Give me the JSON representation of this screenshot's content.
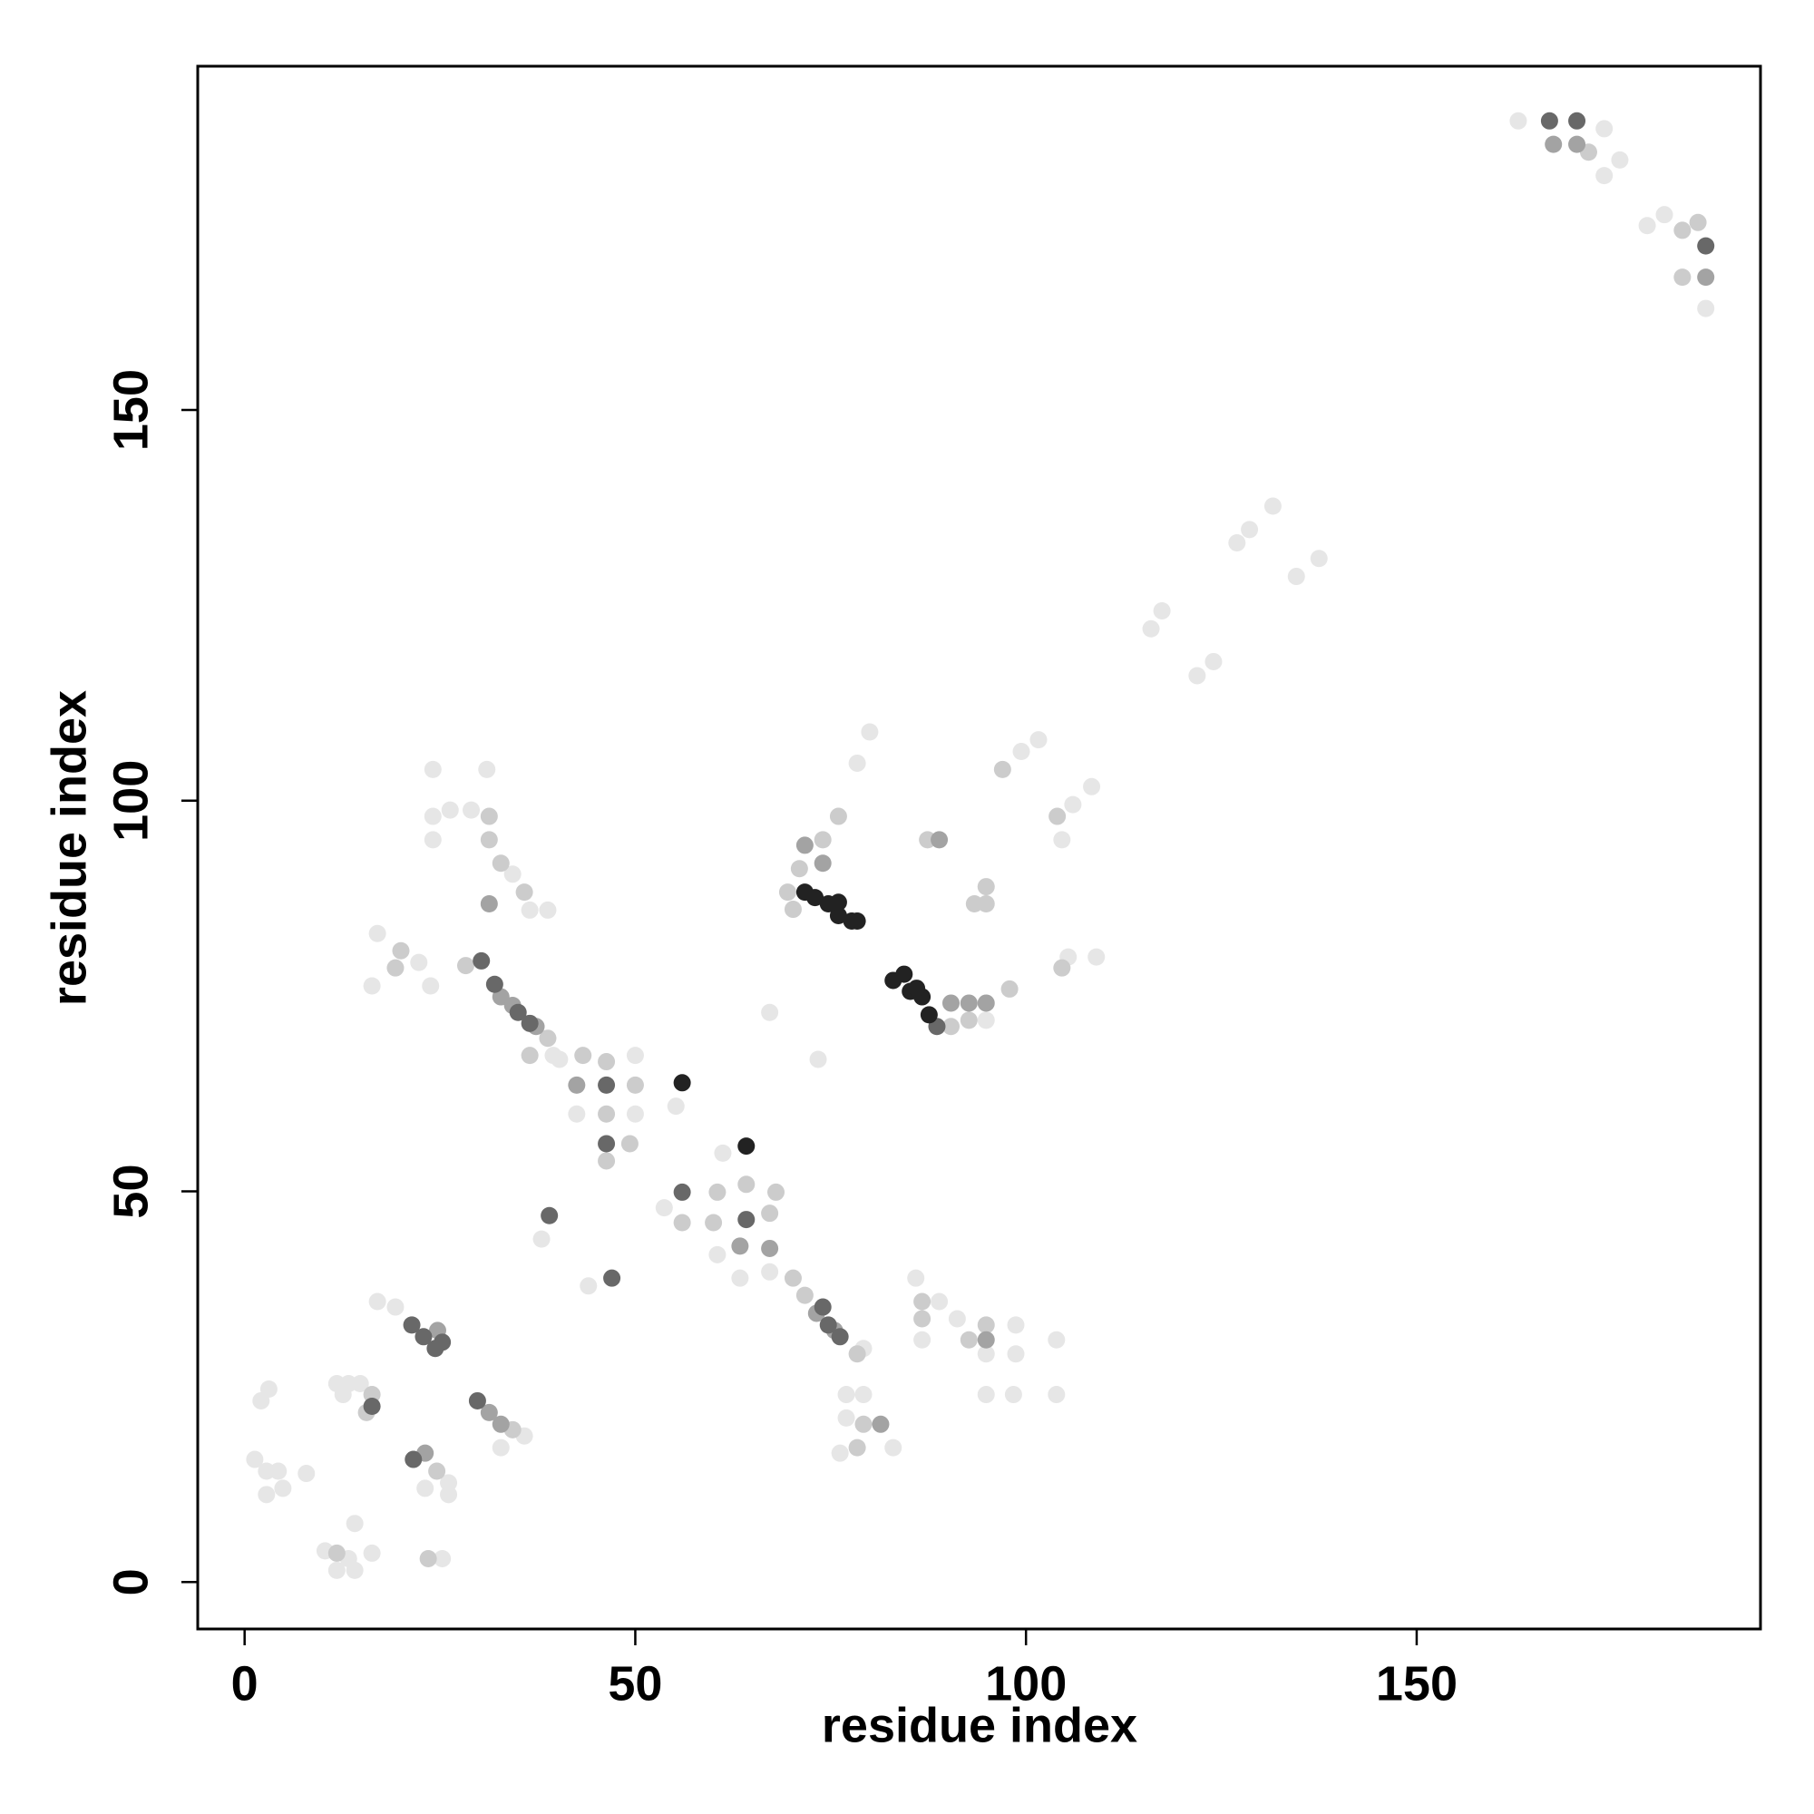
{
  "chart_data": {
    "type": "scatter",
    "x_label": "residue index",
    "y_label": "residue index",
    "xlim": [
      -6,
      194
    ],
    "ylim": [
      -6,
      194
    ],
    "xticks": [
      0,
      50,
      100,
      150
    ],
    "yticks": [
      0,
      50,
      100,
      150
    ],
    "grid": false,
    "series": [
      {
        "color": "#e6e6e6",
        "x": [
          163,
          174,
          176,
          174,
          179.5,
          181.7,
          187,
          131.6,
          128.6,
          127,
          134.6,
          137.5,
          117.4,
          116,
          124,
          121.9,
          101.6,
          99.4,
          80,
          78.4,
          108.4,
          106,
          104.6,
          67.2,
          105.4,
          109,
          94.9,
          24.1,
          24.1,
          26.3,
          24.1,
          31,
          29,
          34.3,
          36.5,
          38.8,
          17,
          16.3,
          23.8,
          22.3,
          39.5,
          40.3,
          42.5,
          50,
          50,
          55.2,
          61.2,
          38,
          44,
          53.7,
          63.4,
          67.2,
          60.5,
          79.2,
          77,
          79.2,
          76.2,
          83,
          77,
          85.9,
          88.9,
          91.2,
          98.7,
          98.7,
          94.9,
          98.4,
          103.9,
          103.9,
          94.9,
          86.7,
          17,
          19.3,
          11.8,
          13.3,
          14.8,
          12.6,
          35.8,
          32.8,
          26.1,
          26.1,
          23.1,
          1.3,
          2.8,
          4.3,
          4.9,
          7.9,
          2.8,
          3.1,
          2.1,
          10.3,
          13.3,
          14.1,
          16.3,
          14.1,
          11.8,
          25.3,
          73.4
        ],
        "values": [
          187,
          186,
          182,
          180,
          173.6,
          175,
          163,
          137.7,
          134.7,
          133,
          128.7,
          131,
          124.3,
          122,
          117.8,
          116,
          107.8,
          106.3,
          108.8,
          104.8,
          101.8,
          99.5,
          95,
          72.9,
          80,
          80,
          71.9,
          104,
          98,
          98.8,
          95,
          104,
          98.8,
          90.6,
          86,
          86,
          83,
          76.3,
          76.3,
          79.3,
          67.4,
          66.9,
          59.9,
          67.4,
          59.9,
          60.9,
          54.9,
          43.9,
          37.9,
          47.9,
          38.9,
          39.7,
          41.9,
          29.9,
          24,
          24,
          16.5,
          17.2,
          21,
          38.9,
          35.9,
          33.7,
          32.9,
          29.2,
          24,
          24,
          31,
          24,
          29.2,
          31,
          35.9,
          35.2,
          25.4,
          25.4,
          25.4,
          24,
          18.7,
          17.2,
          12.7,
          11.2,
          12,
          15.7,
          14.2,
          14.2,
          12,
          13.9,
          11.2,
          24.7,
          23.2,
          4,
          3,
          7.5,
          3.7,
          1.5,
          1.5,
          3,
          66.9
        ]
      },
      {
        "color": "#cccccc",
        "x": [
          172,
          184,
          186,
          184,
          97,
          76,
          87.4,
          104,
          94.9,
          94.9,
          93.4,
          97.9,
          104.6,
          90.4,
          92.7,
          31.3,
          31.3,
          32.8,
          35.8,
          20,
          19.3,
          28.3,
          38.8,
          36.5,
          43.3,
          46.3,
          50,
          46.3,
          49.3,
          46.3,
          60.5,
          64.2,
          60,
          56,
          68,
          67.2,
          70.2,
          71.7,
          78.4,
          79.2,
          78.4,
          86.7,
          86.7,
          94.9,
          92.7,
          16.3,
          15.6,
          34.3,
          24.6,
          23.5,
          11.8,
          74,
          71,
          69.5,
          70.2
        ],
        "values": [
          183,
          173,
          174,
          167,
          104,
          98,
          95,
          98,
          89,
          86.8,
          86.8,
          75.9,
          78.6,
          71.1,
          71.9,
          98,
          95,
          92,
          88.3,
          80.8,
          78.6,
          78.9,
          69.6,
          67.4,
          67.4,
          66.6,
          63.6,
          59.9,
          56.1,
          53.9,
          49.9,
          50.9,
          46,
          46,
          49.9,
          47.2,
          38.9,
          36.7,
          29.2,
          20.2,
          17.2,
          35.9,
          33.7,
          32.9,
          31,
          24,
          21.7,
          19.5,
          14.2,
          3,
          3.7,
          95,
          91.3,
          88.3,
          86.1
        ]
      },
      {
        "color": "#a3a3a3",
        "x": [
          167.5,
          170.5,
          187,
          88.9,
          94.9,
          92.7,
          90.4,
          31.3,
          32.8,
          34.3,
          37.3,
          42.5,
          63.4,
          67.2,
          73.2,
          75.5,
          81.4,
          94.9,
          31.3,
          32.8,
          23.1,
          24.7,
          74,
          71.7
        ],
        "values": [
          184,
          184,
          167,
          95,
          74.1,
          74.1,
          74.1,
          86.8,
          74.9,
          73.8,
          71.1,
          63.6,
          43,
          42.7,
          34.4,
          32.2,
          20.2,
          31,
          21.7,
          20.2,
          16.5,
          32.2,
          92,
          94.3
        ]
      },
      {
        "color": "#686868",
        "x": [
          167,
          170.5,
          187,
          46.3,
          46.3,
          56,
          64.2,
          47,
          39,
          74.7,
          76.2,
          74,
          16.3,
          29.8,
          21.4,
          22.9,
          24.4,
          25.3,
          21.6,
          30.3,
          32,
          35,
          36.5,
          88.6
        ],
        "values": [
          187,
          187,
          171,
          63.6,
          56.1,
          49.9,
          46.4,
          38.9,
          46.9,
          32.9,
          31.4,
          35.2,
          22.5,
          23.2,
          32.9,
          31.4,
          29.9,
          30.7,
          15.7,
          79.5,
          76.5,
          72.9,
          71.5,
          71.1
        ]
      },
      {
        "color": "#222222",
        "x": [
          71.7,
          73,
          74.7,
          76,
          77.7,
          78.4,
          76,
          83,
          84.4,
          85.2,
          86.7,
          87.6,
          86,
          56,
          64.2
        ],
        "values": [
          88.3,
          87.6,
          86.8,
          85.3,
          84.6,
          84.6,
          87,
          77,
          77.8,
          75.6,
          74.9,
          72.6,
          76,
          63.9,
          55.8
        ]
      }
    ]
  }
}
